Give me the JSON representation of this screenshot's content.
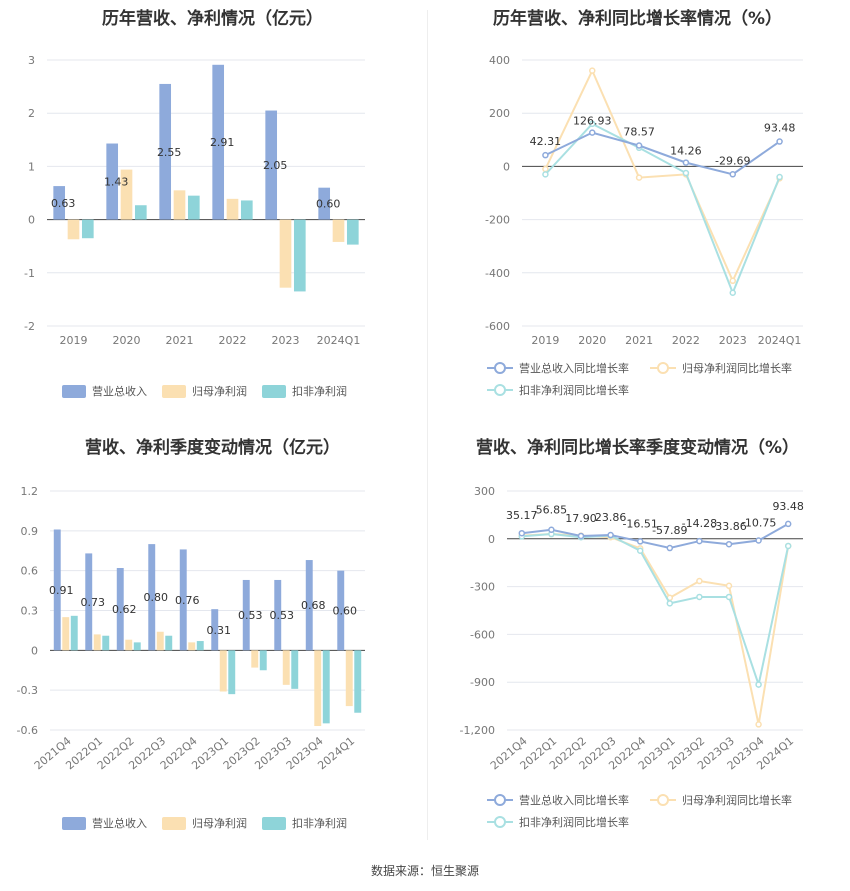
{
  "source": "数据来源：恒生聚源",
  "colors": {
    "revenue": "#8eaadb",
    "net_profit": "#fbe0b2",
    "deducted_profit": "#8ed4d9",
    "revenue_line": "#8eaadb",
    "net_profit_line": "#fbe0b2",
    "deducted_profit_line": "#a9e0e2"
  },
  "chart_data": [
    {
      "id": "annual",
      "type": "bar",
      "title": "历年营收、净利情况（亿元）",
      "categories": [
        "2019",
        "2020",
        "2021",
        "2022",
        "2023",
        "2024Q1"
      ],
      "ylim": [
        -2,
        3
      ],
      "yticks": [
        "3",
        "2",
        "1",
        "0",
        "-1",
        "-2"
      ],
      "grid": true,
      "legend_position": "bottom",
      "series": [
        {
          "name": "营业总收入",
          "values": [
            0.63,
            1.43,
            2.55,
            2.91,
            2.05,
            0.6
          ],
          "labels": [
            "0.63",
            "1.43",
            "2.55",
            "2.91",
            "2.05",
            "0.60"
          ]
        },
        {
          "name": "归母净利润",
          "values": [
            -0.37,
            0.94,
            0.55,
            0.39,
            -1.28,
            -0.42
          ]
        },
        {
          "name": "扣非净利润",
          "values": [
            -0.35,
            0.27,
            0.45,
            0.36,
            -1.35,
            -0.47
          ]
        }
      ]
    },
    {
      "id": "annual_growth",
      "type": "line",
      "title": "历年营收、净利同比增长率情况（%）",
      "categories": [
        "2019",
        "2020",
        "2021",
        "2022",
        "2023",
        "2024Q1"
      ],
      "ylim": [
        -600,
        400
      ],
      "yticks": [
        "400",
        "200",
        "0",
        "-200",
        "-400",
        "-600"
      ],
      "grid": true,
      "legend_position": "bottom",
      "series": [
        {
          "name": "营业总收入同比增长率",
          "values": [
            42.31,
            126.93,
            78.57,
            14.26,
            -29.69,
            93.48
          ],
          "labels": [
            "42.31",
            "126.93",
            "78.57",
            "14.26",
            "-29.69",
            "93.48"
          ]
        },
        {
          "name": "归母净利润同比增长率",
          "values": [
            -10,
            360,
            -42,
            -30,
            -430,
            -45
          ]
        },
        {
          "name": "扣非净利润同比增长率",
          "values": [
            -30,
            160,
            70,
            -25,
            -475,
            -40
          ]
        }
      ]
    },
    {
      "id": "quarterly",
      "type": "bar",
      "title": "营收、净利季度变动情况（亿元）",
      "categories": [
        "2021Q4",
        "2022Q1",
        "2022Q2",
        "2022Q3",
        "2022Q4",
        "2023Q1",
        "2023Q2",
        "2023Q3",
        "2023Q4",
        "2024Q1"
      ],
      "ylim": [
        -0.6,
        1.2
      ],
      "yticks": [
        "1.2",
        "0.9",
        "0.6",
        "0.3",
        "0",
        "-0.3",
        "-0.6"
      ],
      "grid": true,
      "legend_position": "bottom",
      "series": [
        {
          "name": "营业总收入",
          "values": [
            0.91,
            0.73,
            0.62,
            0.8,
            0.76,
            0.31,
            0.53,
            0.53,
            0.68,
            0.6
          ],
          "labels": [
            "0.91",
            "0.73",
            "0.62",
            "0.80",
            "0.76",
            "0.31",
            "0.53",
            "0.53",
            "0.68",
            "0.60"
          ]
        },
        {
          "name": "归母净利润",
          "values": [
            0.25,
            0.12,
            0.08,
            0.14,
            0.06,
            -0.31,
            -0.13,
            -0.26,
            -0.57,
            -0.42
          ]
        },
        {
          "name": "扣非净利润",
          "values": [
            0.26,
            0.11,
            0.06,
            0.11,
            0.07,
            -0.33,
            -0.15,
            -0.29,
            -0.55,
            -0.47
          ]
        }
      ]
    },
    {
      "id": "quarterly_growth",
      "type": "line",
      "title": "营收、净利同比增长率季度变动情况（%）",
      "categories": [
        "2021Q4",
        "2022Q1",
        "2022Q2",
        "2022Q3",
        "2022Q4",
        "2023Q1",
        "2023Q2",
        "2023Q3",
        "2023Q4",
        "2024Q1"
      ],
      "ylim": [
        -1200,
        300
      ],
      "yticks": [
        "300",
        "0",
        "-300",
        "-600",
        "-900",
        "-1,200"
      ],
      "grid": true,
      "legend_position": "bottom",
      "series": [
        {
          "name": "营业总收入同比增长率",
          "values": [
            35.17,
            56.85,
            17.9,
            23.86,
            -16.51,
            -57.89,
            -14.28,
            -33.86,
            -10.75,
            93.48
          ],
          "labels": [
            "35.17",
            "56.85",
            "17.90",
            "23.86",
            "-16.51",
            "-57.89",
            "-14.28",
            "-33.86",
            "-10.75",
            "93.48"
          ]
        },
        {
          "name": "归母净利润同比增长率",
          "values": [
            20,
            30,
            20,
            10,
            -60,
            -370,
            -265,
            -295,
            -1165,
            -45
          ]
        },
        {
          "name": "扣非净利润同比增长率",
          "values": [
            15,
            30,
            10,
            20,
            -75,
            -405,
            -365,
            -365,
            -915,
            -45
          ]
        }
      ]
    }
  ]
}
